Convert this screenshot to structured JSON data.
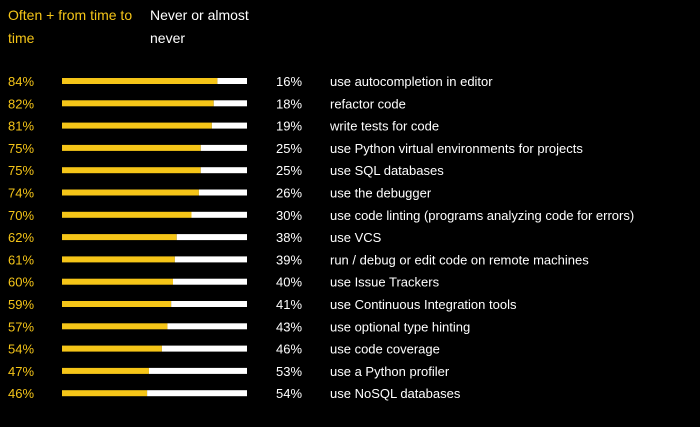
{
  "legend": {
    "often_label": "Often + from time to time",
    "never_label": "Never or almost never"
  },
  "colors": {
    "background": "#000000",
    "often": "#f5c518",
    "never": "#ffffff",
    "text": "#ffffff"
  },
  "chart_data": {
    "type": "bar",
    "orientation": "horizontal",
    "stacked": true,
    "normalized": true,
    "grid": false,
    "legend_position": "top-left",
    "categories": [
      "use autocompletion in editor",
      "refactor code",
      "write tests for code",
      "use Python virtual environments for projects",
      "use SQL databases",
      "use the debugger",
      "use code linting (programs analyzing code for errors)",
      "use VCS",
      "run / debug or edit code on remote machines",
      "use Issue Trackers",
      "use Continuous Integration tools",
      "use optional type hinting",
      "use code coverage",
      "use a Python profiler",
      "use NoSQL databases"
    ],
    "series": [
      {
        "name": "Often + from time to time",
        "values": [
          84,
          82,
          81,
          75,
          75,
          74,
          70,
          62,
          61,
          60,
          59,
          57,
          54,
          47,
          46
        ],
        "labels": [
          "84%",
          "82%",
          "81%",
          "75%",
          "75%",
          "74%",
          "70%",
          "62%",
          "61%",
          "60%",
          "59%",
          "57%",
          "54%",
          "47%",
          "46%"
        ]
      },
      {
        "name": "Never or almost never",
        "values": [
          16,
          18,
          19,
          25,
          25,
          26,
          30,
          38,
          39,
          40,
          41,
          43,
          46,
          53,
          54
        ],
        "labels": [
          "16%",
          "18%",
          "19%",
          "25%",
          "25%",
          "26%",
          "30%",
          "38%",
          "39%",
          "40%",
          "41%",
          "43%",
          "46%",
          "53%",
          "54%"
        ]
      }
    ]
  }
}
